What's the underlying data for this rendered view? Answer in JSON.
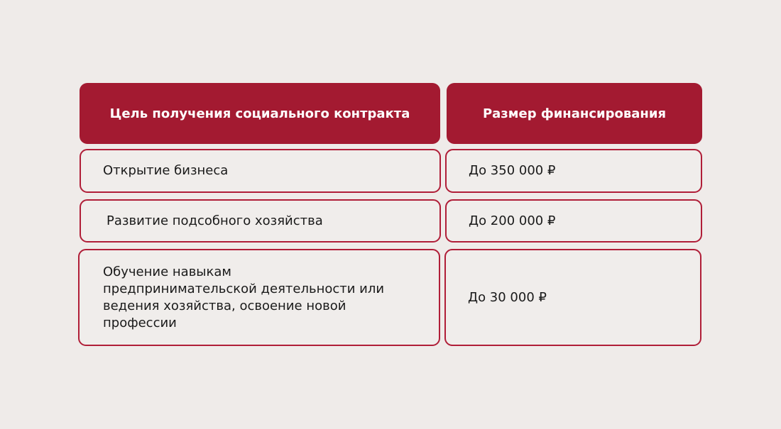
{
  "table": {
    "headers": [
      "Цель получения социального контракта",
      "Размер финансирования"
    ],
    "rows": [
      {
        "goal": "Открытие бизнеса",
        "amount": "До 350 000 ₽"
      },
      {
        "goal": "Развитие подсобного хозяйства",
        "amount": "До 200 000 ₽"
      },
      {
        "goal": "Обучение навыкам предпринимательской деятельности или ведения хозяйства, освоение новой профессии",
        "amount": "До 30 000 ₽"
      }
    ]
  },
  "colors": {
    "accent": "#a31a31",
    "background": "#efebe9",
    "border": "#b01e38"
  }
}
